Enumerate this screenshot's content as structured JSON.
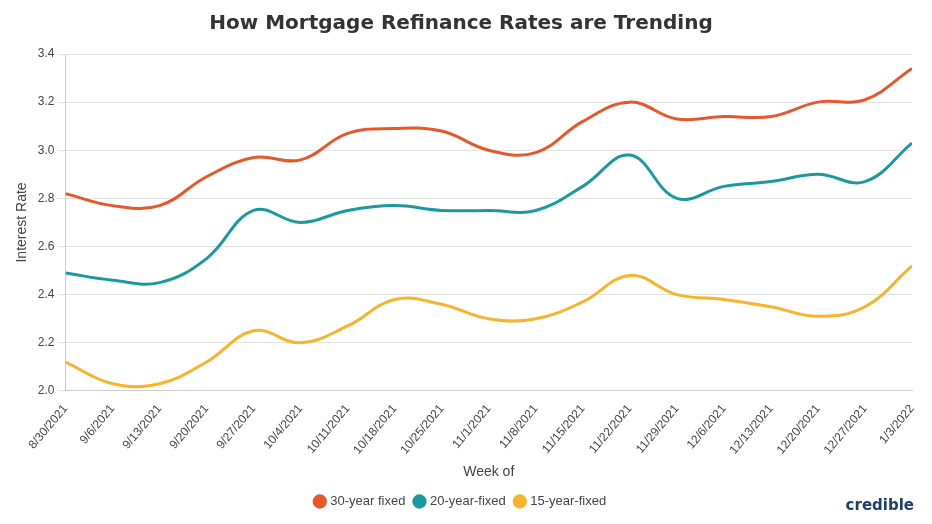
{
  "chart_data": {
    "type": "line",
    "title": "How Mortgage Refinance Rates are Trending",
    "x_label": "Week of",
    "y_label": "Interest Rate",
    "annotation": "credible",
    "categories": [
      "8/30/2021",
      "9/6/2021",
      "9/13/2021",
      "9/20/2021",
      "9/27/2021",
      "10/4/2021",
      "10/11/2021",
      "10/18/2021",
      "10/25/2021",
      "11/1/2021",
      "11/8/2021",
      "11/15/2021",
      "11/22/2021",
      "11/29/2021",
      "12/6/2021",
      "12/13/2021",
      "12/20/2021",
      "12/27/2021",
      "1/3/2022"
    ],
    "series": [
      {
        "name": "30-year fixed",
        "color": "#e8572a",
        "values": [
          2.82,
          2.77,
          2.77,
          2.89,
          2.97,
          2.96,
          3.07,
          3.09,
          3.08,
          3.0,
          2.99,
          3.12,
          3.2,
          3.13,
          3.14,
          3.14,
          3.2,
          3.21,
          3.34
        ]
      },
      {
        "name": "20-year-fixed",
        "color": "#1a9aa0",
        "values": [
          2.49,
          2.46,
          2.45,
          2.55,
          2.75,
          2.7,
          2.75,
          2.77,
          2.75,
          2.75,
          2.75,
          2.85,
          2.98,
          2.8,
          2.85,
          2.87,
          2.9,
          2.87,
          3.03
        ]
      },
      {
        "name": "15-year-fixed",
        "color": "#f7b32b",
        "values": [
          2.12,
          2.03,
          2.03,
          2.12,
          2.25,
          2.2,
          2.27,
          2.38,
          2.36,
          2.3,
          2.3,
          2.37,
          2.48,
          2.4,
          2.38,
          2.35,
          2.31,
          2.35,
          2.52
        ]
      }
    ],
    "ylim": [
      2.0,
      3.4
    ],
    "yticks": [
      {
        "value": 2.0,
        "label": "2.0"
      },
      2.2,
      2.4,
      2.6,
      2.8,
      {
        "value": 3.0,
        "label": "3.0"
      },
      3.2,
      3.4
    ],
    "grid": true,
    "legend": "bottom"
  }
}
